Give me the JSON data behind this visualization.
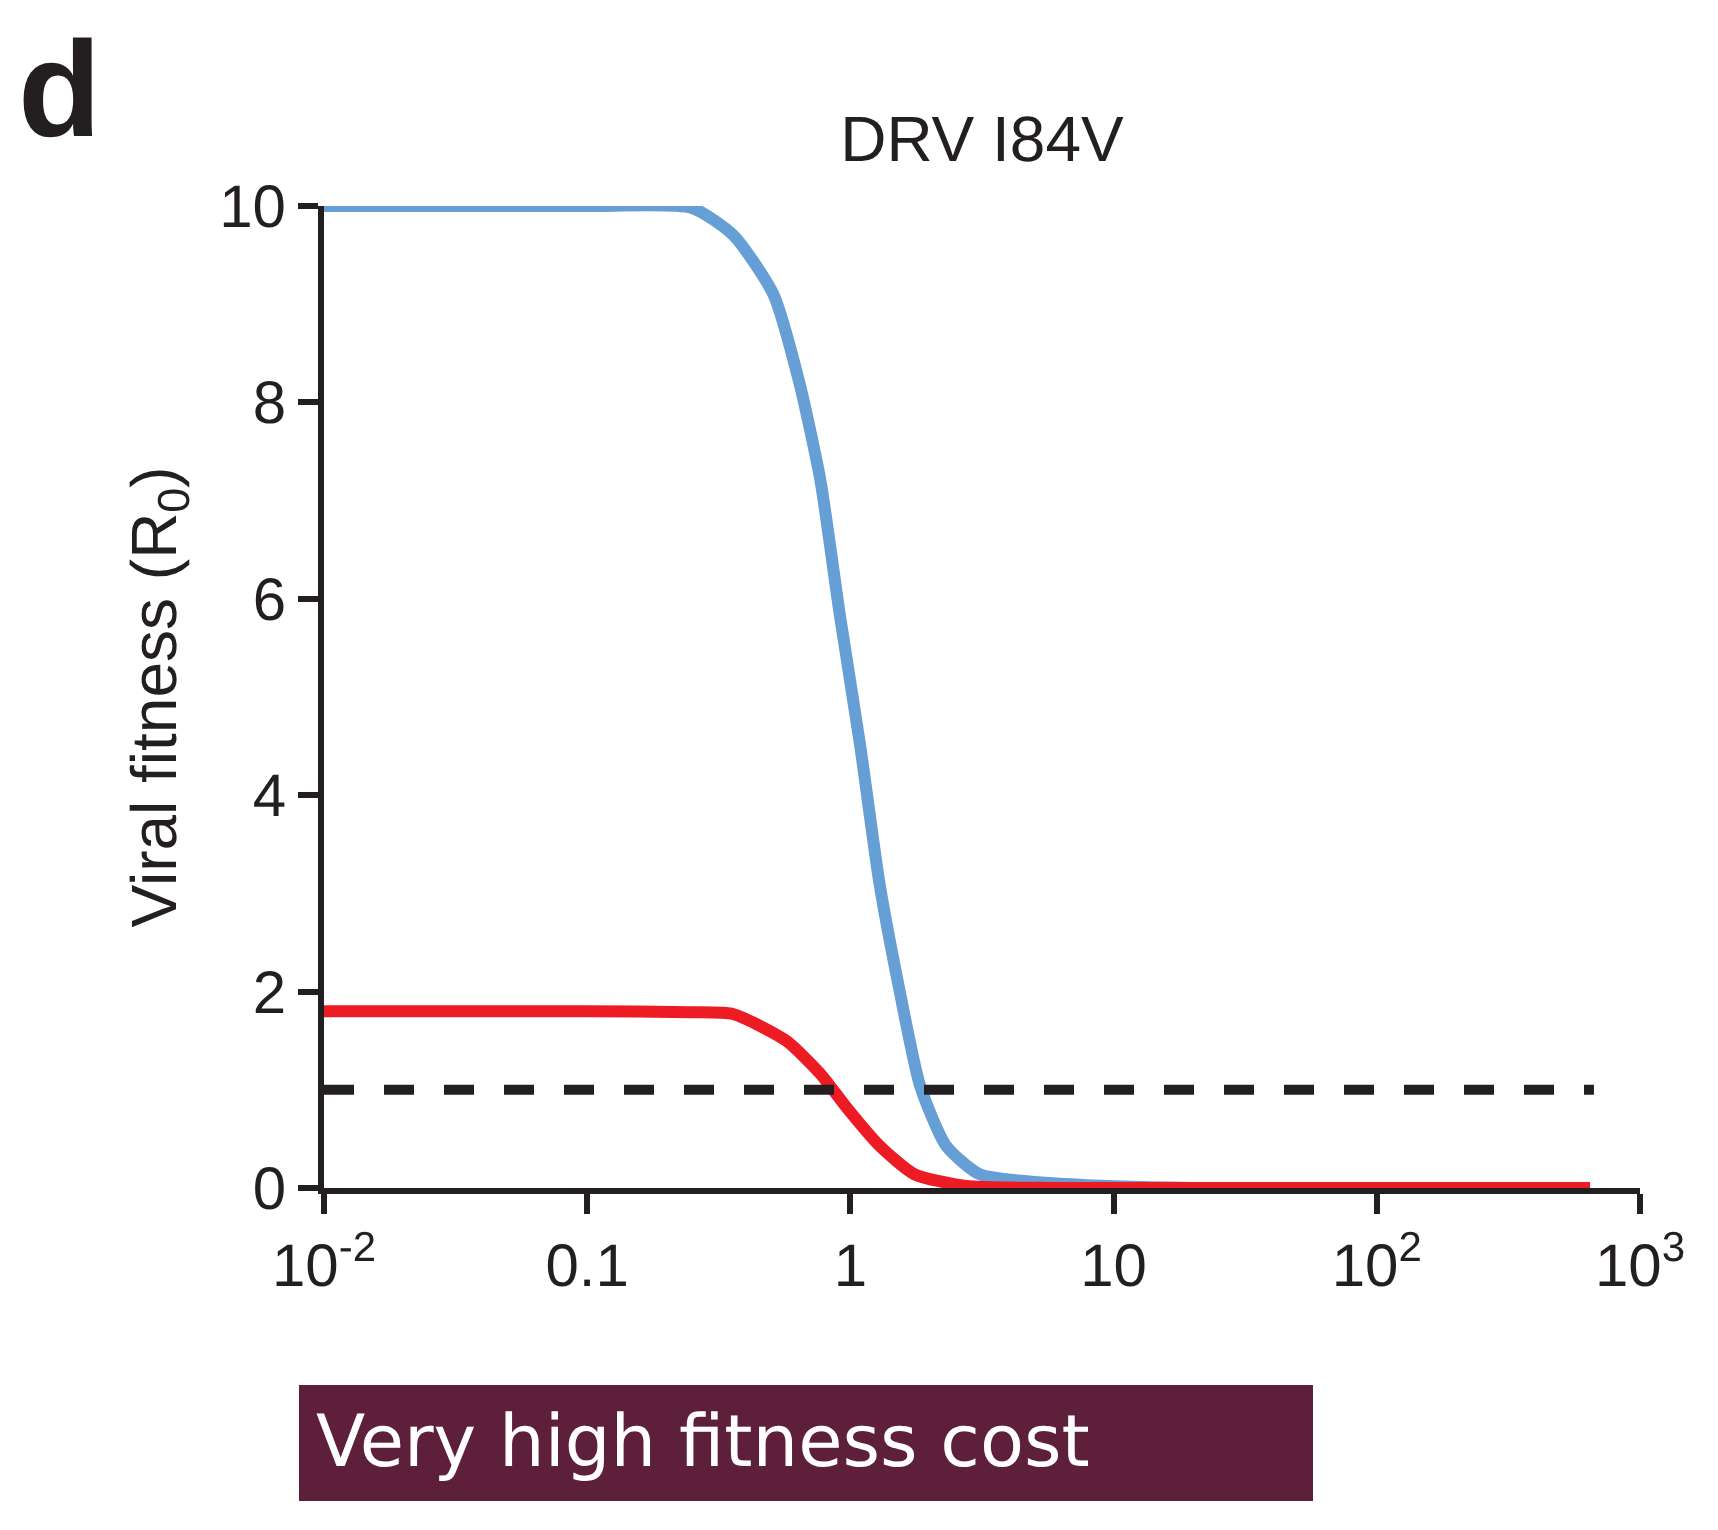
{
  "chart_data": {
    "type": "line",
    "title": "DRV I84V",
    "ylabel": "Viral fitness (R$_{0}$)",
    "annotations": [
      "d",
      "Very high fitness cost"
    ],
    "log": "x",
    "xlim": [
      0.01,
      1000
    ],
    "ylim": [
      0,
      10
    ],
    "xticks": [
      {
        "value": 0.01,
        "label": "10$^{-2}$"
      },
      {
        "value": 0.1,
        "label": "0.1"
      },
      {
        "value": 1,
        "label": "1"
      },
      {
        "value": 10,
        "label": "10"
      },
      {
        "value": 100,
        "label": "10$^{2}$"
      },
      {
        "value": 1000,
        "label": "10$^{3}$"
      }
    ],
    "yticks": [
      0,
      2,
      4,
      6,
      8,
      10
    ],
    "grid": false,
    "marker": "none",
    "ref_lines": [
      {
        "axis": "y",
        "value": 1,
        "color": "#231f20",
        "line_style": "dashed"
      }
    ],
    "series": [
      {
        "color": "#659fd6",
        "x": [
          0.01,
          0.1,
          0.25,
          0.36,
          0.51,
          0.64,
          0.77,
          0.91,
          1.09,
          1.29,
          1.54,
          1.84,
          2.31,
          3.1,
          6.6,
          20,
          646
        ],
        "values": [
          10,
          10,
          9.98,
          9.7,
          9.1,
          8.2,
          7.2,
          5.85,
          4.5,
          3.1,
          2.0,
          1.04,
          0.43,
          0.14,
          0.04,
          0,
          0
        ]
      },
      {
        "color": "#ed1c24",
        "x": [
          0.01,
          0.1,
          0.25,
          0.36,
          0.57,
          0.77,
          0.96,
          1.29,
          1.75,
          2.75,
          6,
          646
        ],
        "values": [
          1.8,
          1.8,
          1.79,
          1.77,
          1.5,
          1.16,
          0.83,
          0.43,
          0.14,
          0.02,
          0,
          0
        ]
      }
    ]
  }
}
